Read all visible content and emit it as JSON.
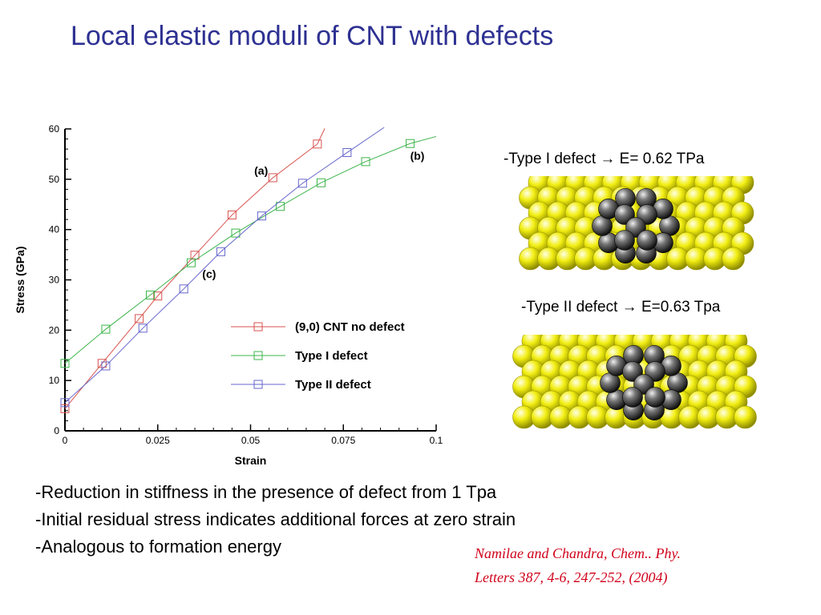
{
  "slide": {
    "title": "Local elastic moduli of CNT with defects"
  },
  "chart_data": {
    "type": "line",
    "xlabel": "Strain",
    "ylabel": "Stress (GPa)",
    "xlim": [
      0,
      0.1
    ],
    "ylim": [
      0,
      60
    ],
    "x_ticks": [
      "0",
      "0.025",
      "0.05",
      "0.075",
      "0.1"
    ],
    "y_ticks": [
      "0",
      "10",
      "20",
      "30",
      "40",
      "50",
      "60"
    ],
    "grid": false,
    "legend_position": "lower-right",
    "series": [
      {
        "name": "(9,0) CNT no defect",
        "color": "#d9534f",
        "marker": "square",
        "line_end": [
          0.07,
          60.1
        ],
        "points": [
          [
            0,
            4.4
          ],
          [
            0.01,
            13.4
          ],
          [
            0.02,
            22.3
          ],
          [
            0.025,
            26.8
          ],
          [
            0.035,
            34.9
          ],
          [
            0.045,
            42.9
          ],
          [
            0.056,
            50.3
          ],
          [
            0.068,
            57.0
          ]
        ]
      },
      {
        "name": "Type I defect",
        "color": "#3cb44b",
        "marker": "square",
        "line_end": [
          0.1,
          58.5
        ],
        "points": [
          [
            0,
            13.4
          ],
          [
            0.011,
            20.2
          ],
          [
            0.023,
            27.0
          ],
          [
            0.034,
            33.4
          ],
          [
            0.046,
            39.3
          ],
          [
            0.058,
            44.6
          ],
          [
            0.069,
            49.3
          ],
          [
            0.081,
            53.5
          ],
          [
            0.093,
            57.1
          ]
        ]
      },
      {
        "name": "Type II defect",
        "color": "#6666cc",
        "marker": "square",
        "line_end": [
          0.086,
          60.3
        ],
        "points": [
          [
            0,
            5.6
          ],
          [
            0.011,
            12.9
          ],
          [
            0.021,
            20.4
          ],
          [
            0.032,
            28.2
          ],
          [
            0.042,
            35.6
          ],
          [
            0.053,
            42.7
          ],
          [
            0.064,
            49.2
          ],
          [
            0.076,
            55.3
          ]
        ]
      }
    ],
    "annotations": [
      {
        "text": "(a)",
        "x": 0.051,
        "y": 50.9
      },
      {
        "text": "(b)",
        "x": 0.093,
        "y": 53.9
      },
      {
        "text": "(c)",
        "x": 0.037,
        "y": 30.4
      }
    ]
  },
  "panels": {
    "type1": {
      "label": "-Type I defect  → E= 0.62 TPa",
      "colors": {
        "host": "#f2ee12",
        "host_dark": "#8c8a00",
        "defect": "#777777",
        "defect_dark": "#111111"
      }
    },
    "type2": {
      "label": "-Type II defect → E=0.63 Tpa",
      "colors": {
        "host": "#f2ee12",
        "host_dark": "#8c8a00",
        "defect": "#777777",
        "defect_dark": "#111111"
      }
    }
  },
  "bullets": [
    "-Reduction in stiffness in the presence of defect from 1 Tpa",
    "-Initial residual stress indicates additional forces at zero strain",
    "-Analogous to formation energy"
  ],
  "citation": {
    "line1": "Namilae and Chandra, Chem.. Phy.",
    "line2": "Letters  387, 4-6, 247-252, (2004)"
  }
}
